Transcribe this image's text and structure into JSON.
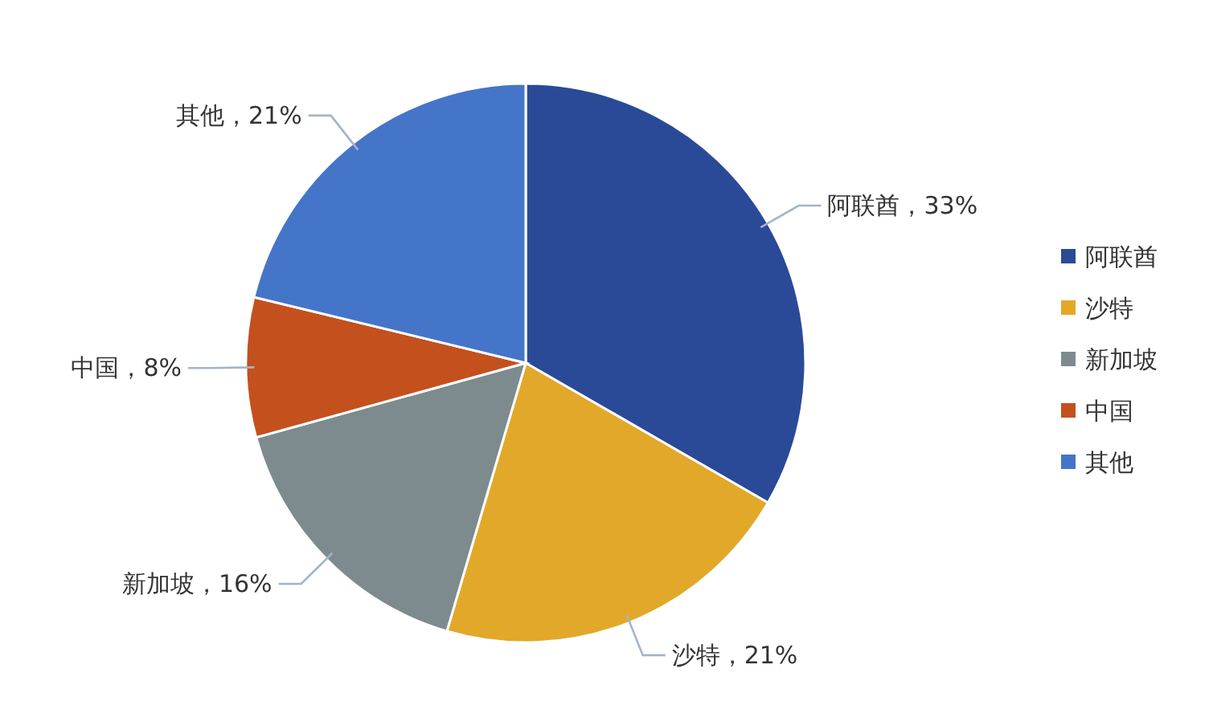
{
  "chart_data": {
    "type": "pie",
    "categories": [
      "阿联酋",
      "沙特",
      "新加坡",
      "中国",
      "其他"
    ],
    "values": [
      33,
      21,
      16,
      8,
      21
    ],
    "colors": [
      "#2a4a98",
      "#e2a82a",
      "#7d8b8e",
      "#c4501e",
      "#4575c8"
    ],
    "value_labels": [
      "阿联酋，33%",
      "沙特，21%",
      "新加坡，16%",
      "中国，8%",
      "其他，21%"
    ],
    "legend": "right"
  }
}
